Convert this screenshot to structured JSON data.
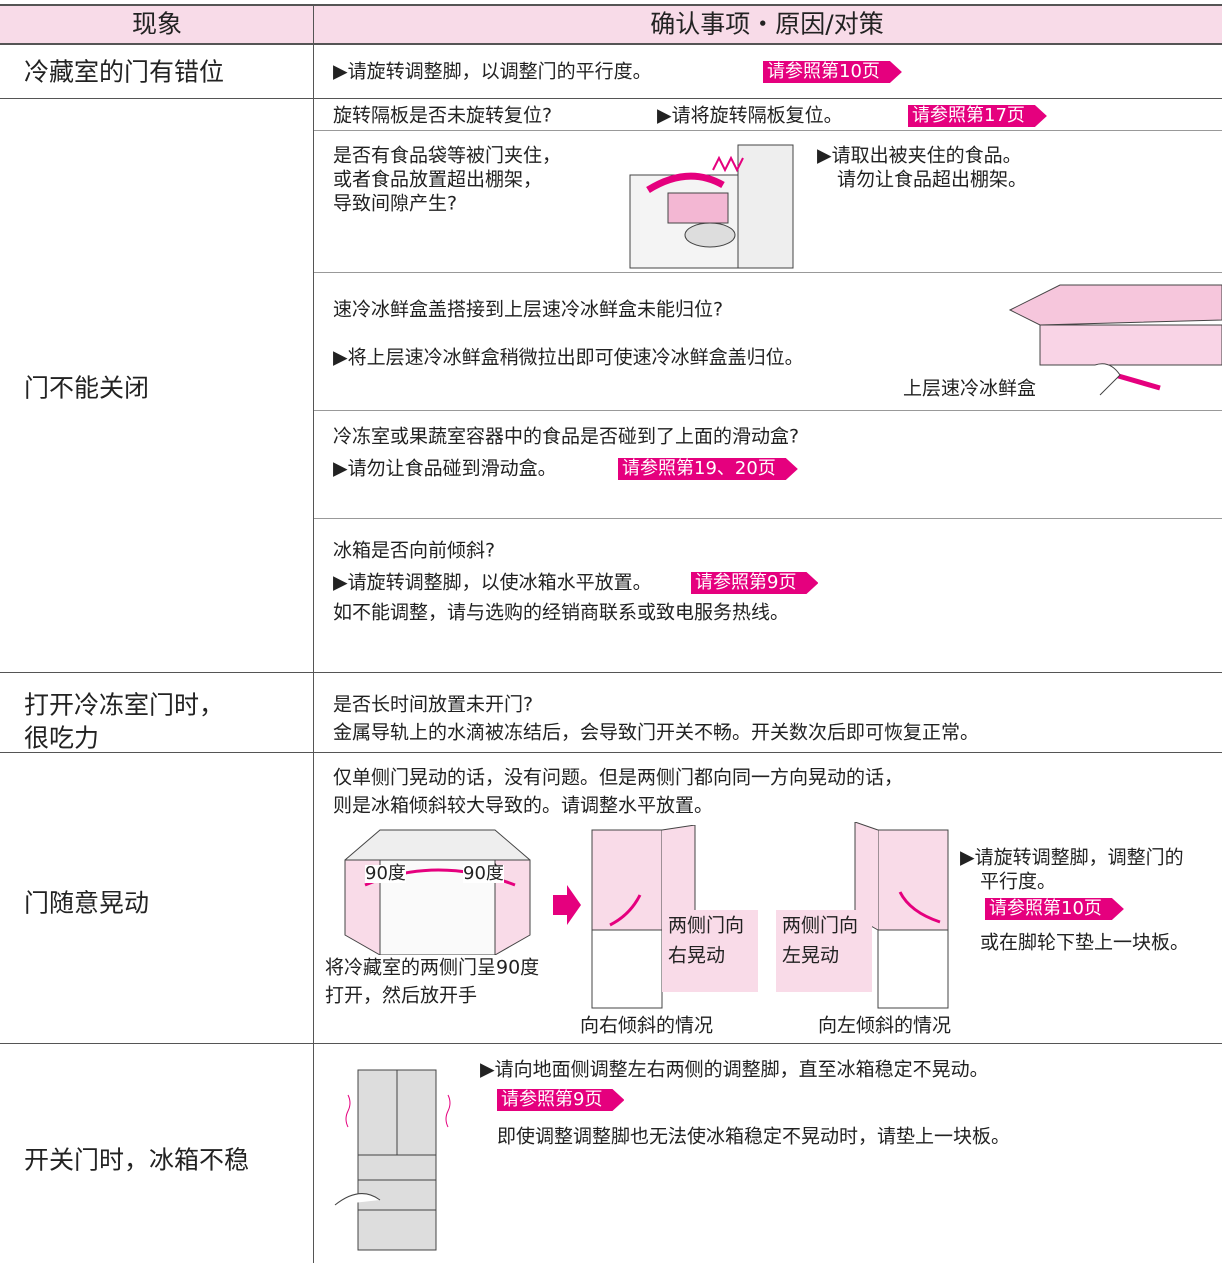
{
  "header": {
    "symptom": "现象",
    "check": "确认事项・原因/对策"
  },
  "rows": [
    {
      "symptom": [
        "冷藏室的门有错位"
      ],
      "action": "▶请旋转调整脚，以调整门的平行度。",
      "ref": "请参照第10页"
    },
    {
      "symptom": [
        "门不能关闭"
      ],
      "cases": [
        {
          "check": [
            "旋转隔板是否未旋转复位?"
          ],
          "action": [
            "▶请将旋转隔板复位。"
          ],
          "ref": "请参照第17页"
        },
        {
          "check": [
            "是否有食品袋等被门夹住，",
            "或者食品放置超出棚架，",
            "导致间隙产生?"
          ],
          "action": [
            "▶请取出被夹住的食品。",
            "请勿让食品超出棚架。"
          ]
        },
        {
          "check": [
            "速冷冰鲜盒盖搭接到上层速冷冰鲜盒未能归位?"
          ],
          "action": [
            "▶将上层速冷冰鲜盒稍微拉出即可使速冷冰鲜盒盖归位。"
          ],
          "figure_label": "上层速冷冰鲜盒"
        },
        {
          "check": [
            "冷冻室或果蔬室容器中的食品是否碰到了上面的滑动盒?"
          ],
          "action": [
            "▶请勿让食品碰到滑动盒。"
          ],
          "ref": "请参照第19、20页"
        },
        {
          "check": [
            "冰箱是否向前倾斜?"
          ],
          "action": [
            "▶请旋转调整脚，以使冰箱水平放置。"
          ],
          "ref": "请参照第9页",
          "note": "如不能调整，请与选购的经销商联系或致电服务热线。"
        }
      ]
    },
    {
      "symptom": [
        "打开冷冻室门时，",
        "很吃力"
      ],
      "check": "是否长时间放置未开门?",
      "note": "金属导轨上的水滴被冻结后，会导致门开关不畅。开关数次后即可恢复正常。"
    },
    {
      "symptom": [
        "门随意晃动"
      ],
      "note": [
        "仅单侧门晃动的话，没有问题。但是两侧门都向同一方向晃动的话，",
        "则是冰箱倾斜较大导致的。请调整水平放置。"
      ],
      "figure": {
        "angle_left": "90度",
        "angle_right": "90度",
        "caption": [
          "将冷藏室的两侧门呈90度",
          "打开，然后放开手"
        ]
      },
      "right_tilt": {
        "label": [
          "两侧门向",
          "右晃动"
        ],
        "caption": "向右倾斜的情况"
      },
      "left_tilt": {
        "label": [
          "两侧门向",
          "左晃动"
        ],
        "caption": "向左倾斜的情况"
      },
      "action": [
        "▶请旋转调整脚，调整门的",
        "平行度。"
      ],
      "ref": "请参照第10页",
      "note2": "或在脚轮下垫上一块板。"
    },
    {
      "symptom": [
        "开关门时，冰箱不稳"
      ],
      "action": "▶请向地面侧调整左右两侧的调整脚，直至冰箱稳定不晃动。",
      "ref": "请参照第9页",
      "note": "即使调整调整脚也无法使冰箱稳定不晃动时，请垫上一块板。"
    }
  ]
}
